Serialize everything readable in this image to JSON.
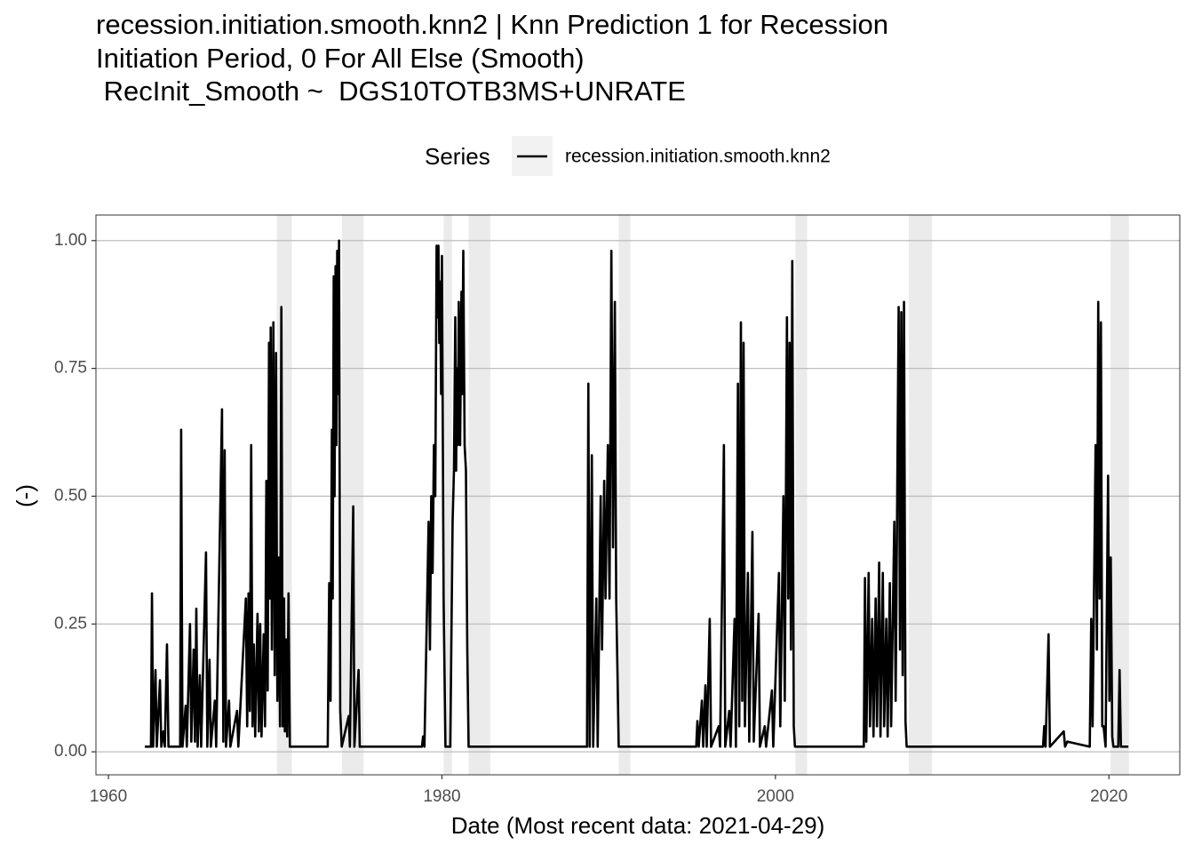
{
  "chart_data": {
    "type": "line",
    "title": [
      "recession.initiation.smooth.knn2 | Knn Prediction 1 for Recession",
      "Initiation Period, 0 For All Else (Smooth)",
      " RecInit_Smooth ~  DGS10TOTB3MS+UNRATE"
    ],
    "legend_title": "Series",
    "x_label": "Date (Most recent data: 2021-04-29)",
    "y_label": "(-)",
    "xlim": [
      1959.25,
      2024.25
    ],
    "ylim": [
      -0.045,
      1.05
    ],
    "xticks": [
      1960,
      1980,
      2000,
      2020
    ],
    "yticks": [
      {
        "value": 0,
        "label": "0.00"
      },
      {
        "value": 0.25,
        "label": "0.25"
      },
      {
        "value": 0.5,
        "label": "0.50"
      },
      {
        "value": 0.75,
        "label": "0.75"
      },
      {
        "value": 1,
        "label": "1.00"
      }
    ],
    "grid": true,
    "shaded_color": "#ebebeb",
    "shaded_regions": [
      [
        1970.1,
        1971.0
      ],
      [
        1974.0,
        1975.3
      ],
      [
        1980.1,
        1980.6
      ],
      [
        1981.6,
        1982.9
      ],
      [
        1990.6,
        1991.3
      ],
      [
        2001.2,
        2001.9
      ],
      [
        2008.0,
        2009.4
      ],
      [
        2020.1,
        2021.2
      ]
    ],
    "x": [
      1962.18,
      1962.55,
      1962.61,
      1962.68,
      1962.82,
      1962.9,
      1963.09,
      1963.17,
      1963.3,
      1963.38,
      1963.51,
      1963.6,
      1964.3,
      1964.36,
      1964.44,
      1964.63,
      1964.7,
      1964.89,
      1964.97,
      1965.11,
      1965.19,
      1965.27,
      1965.35,
      1965.48,
      1965.56,
      1965.85,
      1965.93,
      1966.06,
      1966.14,
      1966.38,
      1966.46,
      1966.81,
      1966.89,
      1966.97,
      1967.05,
      1967.23,
      1967.31,
      1967.71,
      1967.79,
      1968.24,
      1968.32,
      1968.4,
      1968.48,
      1968.56,
      1968.64,
      1968.72,
      1968.8,
      1968.94,
      1969.02,
      1969.1,
      1969.18,
      1969.31,
      1969.39,
      1969.47,
      1969.55,
      1969.63,
      1969.68,
      1969.73,
      1969.8,
      1969.89,
      1969.97,
      1970.05,
      1970.13,
      1970.21,
      1970.29,
      1970.37,
      1970.45,
      1970.53,
      1970.58,
      1970.64,
      1970.72,
      1970.8,
      1970.88,
      1973.15,
      1973.24,
      1973.32,
      1973.4,
      1973.45,
      1973.51,
      1973.56,
      1973.62,
      1973.67,
      1973.72,
      1973.78,
      1973.83,
      1973.9,
      1973.99,
      1974.41,
      1974.48,
      1974.68,
      1974.75,
      1975.0,
      1975.07,
      1978.8,
      1978.87,
      1978.95,
      1979.2,
      1979.28,
      1979.36,
      1979.44,
      1979.52,
      1979.6,
      1979.68,
      1979.74,
      1979.79,
      1979.84,
      1979.89,
      1979.95,
      1980.0,
      1980.1,
      1980.21,
      1980.5,
      1980.64,
      1980.72,
      1980.8,
      1980.85,
      1980.9,
      1980.95,
      1981.01,
      1981.09,
      1981.17,
      1981.22,
      1981.28,
      1981.36,
      1981.44,
      1981.52,
      1981.6,
      1988.7,
      1988.78,
      1988.86,
      1988.99,
      1989.07,
      1989.26,
      1989.34,
      1989.52,
      1989.6,
      1989.73,
      1989.81,
      1989.95,
      1990.05,
      1990.16,
      1990.26,
      1990.37,
      1990.45,
      1990.53,
      1990.6,
      1995.25,
      1995.32,
      1995.4,
      1995.59,
      1995.67,
      1995.8,
      1995.88,
      1996.06,
      1996.14,
      1996.6,
      1996.68,
      1996.91,
      1996.99,
      1997.23,
      1997.31,
      1997.55,
      1997.63,
      1997.75,
      1997.83,
      1997.93,
      1998.01,
      1998.09,
      1998.17,
      1998.35,
      1998.43,
      1998.62,
      1998.7,
      1998.99,
      1999.07,
      1999.36,
      1999.44,
      1999.79,
      1999.87,
      2000.21,
      2000.29,
      2000.48,
      2000.56,
      2000.69,
      2000.77,
      2000.85,
      2000.93,
      2001.01,
      2001.1,
      2001.17,
      2005.3,
      2005.37,
      2005.45,
      2005.59,
      2005.67,
      2005.8,
      2005.88,
      2006.01,
      2006.09,
      2006.22,
      2006.3,
      2006.44,
      2006.52,
      2006.65,
      2006.73,
      2006.86,
      2006.94,
      2007.13,
      2007.21,
      2007.39,
      2007.47,
      2007.55,
      2007.63,
      2007.71,
      2007.8,
      2007.87,
      2016.05,
      2016.12,
      2016.2,
      2016.38,
      2016.46,
      2017.29,
      2017.37,
      2017.5,
      2018.85,
      2018.94,
      2019.02,
      2019.2,
      2019.28,
      2019.36,
      2019.44,
      2019.52,
      2019.6,
      2019.68,
      2019.8,
      2019.95,
      2020.03,
      2020.11,
      2020.2,
      2020.27,
      2020.56,
      2020.64,
      2020.72,
      2021.17
    ],
    "series": [
      {
        "name": "recession.initiation.smooth.knn2",
        "color": "#000000",
        "values": [
          0.01,
          0.01,
          0.31,
          0.01,
          0.16,
          0.01,
          0.14,
          0.01,
          0.04,
          0.01,
          0.21,
          0.01,
          0.01,
          0.63,
          0.01,
          0.09,
          0.01,
          0.25,
          0.02,
          0.2,
          0.02,
          0.28,
          0.01,
          0.15,
          0.01,
          0.39,
          0.01,
          0.18,
          0.01,
          0.1,
          0.01,
          0.67,
          0.02,
          0.59,
          0.01,
          0.1,
          0.01,
          0.08,
          0.01,
          0.3,
          0.05,
          0.31,
          0.08,
          0.6,
          0.05,
          0.21,
          0.03,
          0.27,
          0.04,
          0.25,
          0.03,
          0.23,
          0.05,
          0.53,
          0.12,
          0.8,
          0.3,
          0.83,
          0.2,
          0.84,
          0.15,
          0.78,
          0.1,
          0.38,
          0.05,
          0.87,
          0.05,
          0.3,
          0.04,
          0.22,
          0.03,
          0.31,
          0.01,
          0.01,
          0.33,
          0.1,
          0.63,
          0.3,
          0.93,
          0.5,
          0.95,
          0.6,
          0.98,
          0.7,
          1.0,
          0.08,
          0.01,
          0.07,
          0.01,
          0.48,
          0.01,
          0.16,
          0.01,
          0.01,
          0.03,
          0.01,
          0.45,
          0.2,
          0.5,
          0.35,
          0.6,
          0.5,
          0.99,
          0.85,
          0.99,
          0.8,
          0.92,
          0.7,
          0.97,
          0.3,
          0.01,
          0.01,
          0.45,
          0.55,
          0.85,
          0.55,
          0.75,
          0.6,
          0.88,
          0.6,
          0.9,
          0.7,
          0.98,
          0.6,
          0.55,
          0.2,
          0.01,
          0.01,
          0.72,
          0.01,
          0.58,
          0.01,
          0.3,
          0.01,
          0.5,
          0.2,
          0.53,
          0.3,
          0.6,
          0.3,
          0.98,
          0.4,
          0.88,
          0.3,
          0.15,
          0.01,
          0.01,
          0.06,
          0.01,
          0.1,
          0.01,
          0.13,
          0.01,
          0.26,
          0.01,
          0.05,
          0.01,
          0.6,
          0.01,
          0.08,
          0.01,
          0.26,
          0.01,
          0.72,
          0.05,
          0.84,
          0.1,
          0.8,
          0.05,
          0.35,
          0.02,
          0.43,
          0.02,
          0.27,
          0.01,
          0.05,
          0.01,
          0.12,
          0.01,
          0.35,
          0.05,
          0.5,
          0.1,
          0.85,
          0.3,
          0.8,
          0.2,
          0.96,
          0.05,
          0.01,
          0.01,
          0.34,
          0.02,
          0.35,
          0.05,
          0.26,
          0.03,
          0.3,
          0.05,
          0.37,
          0.03,
          0.35,
          0.05,
          0.26,
          0.03,
          0.33,
          0.05,
          0.45,
          0.1,
          0.87,
          0.2,
          0.86,
          0.15,
          0.88,
          0.06,
          0.01,
          0.01,
          0.05,
          0.01,
          0.23,
          0.01,
          0.04,
          0.01,
          0.02,
          0.01,
          0.26,
          0.05,
          0.6,
          0.2,
          0.88,
          0.3,
          0.84,
          0.05,
          0.05,
          0.01,
          0.54,
          0.1,
          0.38,
          0.03,
          0.01,
          0.01,
          0.16,
          0.01,
          0.01
        ]
      }
    ]
  }
}
